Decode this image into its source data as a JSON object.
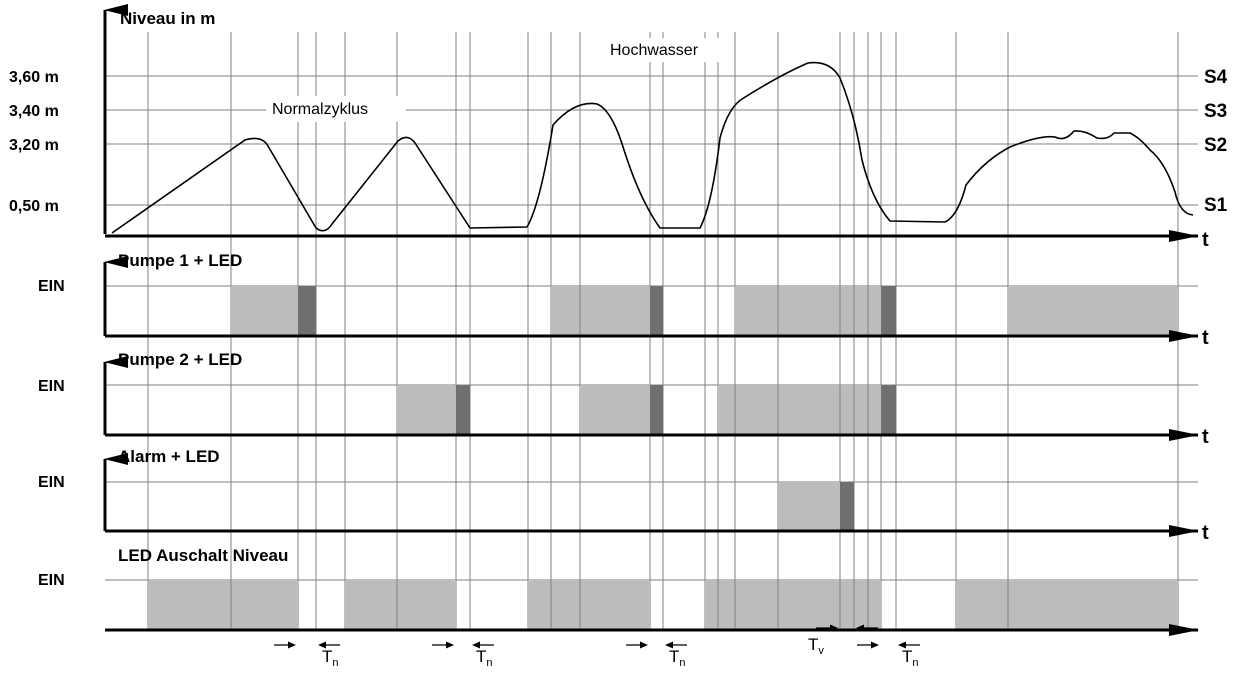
{
  "diagram": {
    "level_panel": {
      "y_label": "Niveau in m",
      "x_axis_label": "t",
      "levels": [
        {
          "value": "3,60 m",
          "switch": "S4"
        },
        {
          "value": "3,40 m",
          "switch": "S3"
        },
        {
          "value": "3,20 m",
          "switch": "S2"
        },
        {
          "value": "0,50 m",
          "switch": "S1"
        }
      ],
      "annotations": {
        "normal_cycle": "Normalzyklus",
        "flood": "Hochwasser"
      }
    },
    "on_label": "EIN",
    "signal_panels": [
      {
        "title": "Pumpe 1 + LED",
        "axis_label": "t"
      },
      {
        "title": "Pumpe 2 + LED",
        "axis_label": "t"
      },
      {
        "title": "Alarm + LED",
        "axis_label": "t"
      },
      {
        "title": "LED Auschalt Niveau",
        "axis_label": ""
      }
    ],
    "delay_labels": {
      "overrun": "T",
      "overrun_sub": "n",
      "delay": "T",
      "delay_sub": "v"
    },
    "colors": {
      "on_fill": "#bcbcbc",
      "overrun_fill": "#6f6f6f",
      "grid": "#808080",
      "axis": "#000000"
    }
  }
}
